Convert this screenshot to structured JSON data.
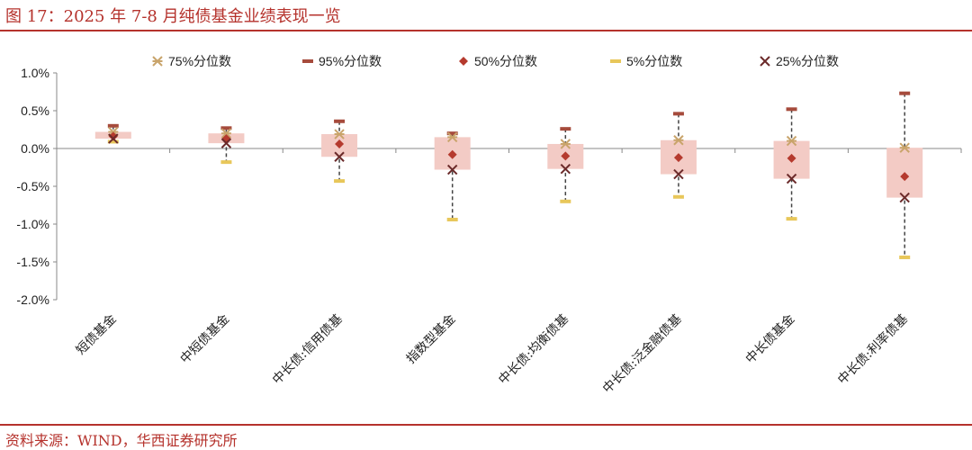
{
  "header": {
    "title": "图 17：2025 年 7-8 月纯债基金业绩表现一览"
  },
  "footer": {
    "source": "资料来源：WIND，华西证券研究所"
  },
  "colors": {
    "accent": "#b5322c",
    "p75": "#c9a46b",
    "p95": "#a64b3c",
    "p50": "#b53a2e",
    "p5": "#e8c75a",
    "p25": "#6b2a2a",
    "box": "#f3cbc5",
    "whisker": "#444444"
  },
  "chart_data": {
    "type": "box",
    "y_unit": "%",
    "ylim": [
      -2.0,
      1.0
    ],
    "yticks": [
      "1.0%",
      "0.5%",
      "0.0%",
      "-0.5%",
      "-1.0%",
      "-1.5%",
      "-2.0%"
    ],
    "ytick_values": [
      1.0,
      0.5,
      0.0,
      -0.5,
      -1.0,
      -1.5,
      -2.0
    ],
    "legend_position": "top",
    "legend": [
      {
        "key": "p75",
        "label": "75%分位数",
        "marker": "asterisk"
      },
      {
        "key": "p95",
        "label": "95%分位数",
        "marker": "dash"
      },
      {
        "key": "p50",
        "label": "50%分位数",
        "marker": "diamond"
      },
      {
        "key": "p5",
        "label": "5%分位数",
        "marker": "dash"
      },
      {
        "key": "p25",
        "label": "25%分位数",
        "marker": "cross"
      }
    ],
    "categories": [
      "短债基金",
      "中短债基金",
      "中长债:信用债基",
      "指数型基金",
      "中长债:均衡债基",
      "中长债:泛金融债基",
      "中长债基金",
      "中长债:利率债基"
    ],
    "p95": [
      0.3,
      0.27,
      0.36,
      0.2,
      0.26,
      0.46,
      0.52,
      0.73
    ],
    "p75": [
      0.22,
      0.2,
      0.19,
      0.15,
      0.06,
      0.11,
      0.1,
      0.01
    ],
    "p50": [
      0.16,
      0.13,
      0.06,
      -0.08,
      -0.1,
      -0.12,
      -0.13,
      -0.37
    ],
    "p25": [
      0.13,
      0.07,
      -0.11,
      -0.28,
      -0.27,
      -0.34,
      -0.4,
      -0.65
    ],
    "p5": [
      0.09,
      -0.18,
      -0.43,
      -0.94,
      -0.7,
      -0.64,
      -0.93,
      -1.44
    ]
  }
}
